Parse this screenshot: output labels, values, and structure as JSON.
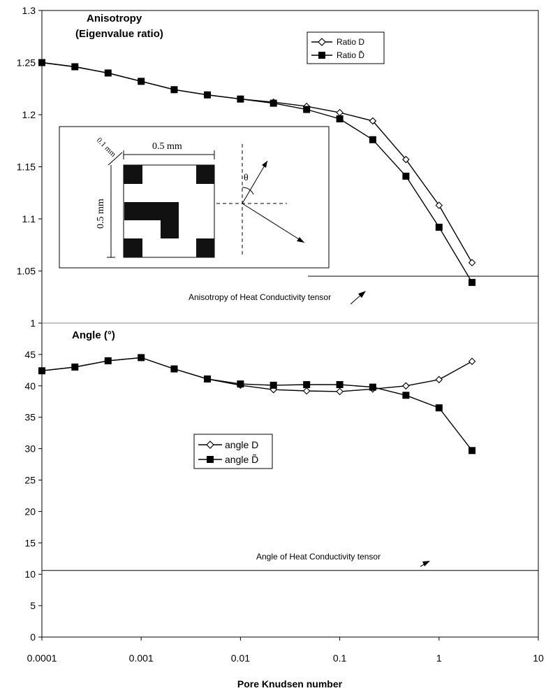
{
  "chart_data": [
    {
      "type": "line",
      "title": "Anisotropy",
      "subtitle": "(Eigenvalue ratio)",
      "x_scale": "log",
      "xlim": [
        0.0001,
        10
      ],
      "ylim": [
        1,
        1.3
      ],
      "yticks": [
        "1",
        "1.05",
        "1.1",
        "1.15",
        "1.2",
        "1.25",
        "1.3"
      ],
      "legend_position": "top-right",
      "x": [
        0.0001,
        0.000215,
        0.000464,
        0.001,
        0.00215,
        0.00464,
        0.01,
        0.0215,
        0.0464,
        0.1,
        0.215,
        0.464,
        1.0,
        2.15
      ],
      "series": [
        {
          "name": "Ratio D",
          "marker": "open-diamond",
          "values": [
            1.25,
            1.246,
            1.24,
            1.232,
            1.224,
            1.219,
            1.215,
            1.212,
            1.208,
            1.202,
            1.194,
            1.157,
            1.113,
            1.058
          ]
        },
        {
          "name": "Ratio D̃",
          "marker": "filled-square",
          "values": [
            1.25,
            1.246,
            1.24,
            1.232,
            1.224,
            1.219,
            1.215,
            1.211,
            1.205,
            1.196,
            1.176,
            1.141,
            1.092,
            1.039
          ]
        }
      ],
      "reference_line": {
        "label": "Anisotropy of Heat Conductivity tensor",
        "value": 1.045,
        "x_start": 0.1
      },
      "inset": {
        "labels": {
          "width": "0.5 mm",
          "height": "0.5 mm",
          "cell": "0.1 mm",
          "angle": "θ"
        }
      }
    },
    {
      "type": "line",
      "title": "Angle (°)",
      "xlabel": "Pore Knudsen number",
      "x_scale": "log",
      "xlim": [
        0.0001,
        10
      ],
      "ylim": [
        0,
        50
      ],
      "yticks": [
        "0",
        "5",
        "10",
        "15",
        "20",
        "25",
        "30",
        "35",
        "40",
        "45"
      ],
      "xticks": [
        "0.0001",
        "0.001",
        "0.01",
        "0.1",
        "1",
        "10"
      ],
      "legend_position": "center-left",
      "x": [
        0.0001,
        0.000215,
        0.000464,
        0.001,
        0.00215,
        0.00464,
        0.01,
        0.0215,
        0.0464,
        0.1,
        0.215,
        0.464,
        1.0,
        2.15
      ],
      "series": [
        {
          "name": "angle D",
          "marker": "open-diamond",
          "values": [
            42.4,
            43.0,
            44.0,
            44.5,
            42.7,
            41.1,
            40.1,
            39.4,
            39.2,
            39.1,
            39.5,
            40.0,
            41.0,
            43.9
          ]
        },
        {
          "name": "angle D̃",
          "marker": "filled-square",
          "values": [
            42.4,
            43.0,
            44.0,
            44.5,
            42.7,
            41.1,
            40.3,
            40.1,
            40.2,
            40.2,
            39.8,
            38.5,
            36.5,
            29.7
          ]
        }
      ],
      "reference_line": {
        "label": "Angle of Heat Conductivity tensor",
        "value": 10.6
      }
    }
  ]
}
